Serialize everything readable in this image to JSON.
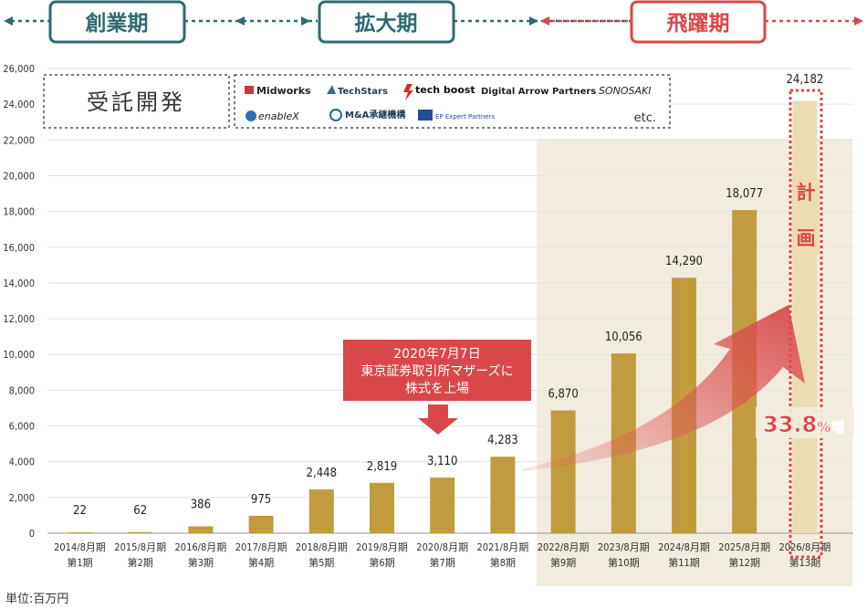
{
  "phases": [
    {
      "label": "創業期",
      "color": "#2f6b72"
    },
    {
      "label": "拡大期",
      "color": "#2f6b72"
    },
    {
      "label": "飛躍期",
      "color": "#d9474a"
    }
  ],
  "clients": {
    "title": "受託開発",
    "logos": [
      "Midworks",
      "TechStars",
      "tech boost",
      "Digital Arrow Partners",
      "SONOSAKI",
      "enableX",
      "M&A承継機構",
      "EP Expert Partners"
    ],
    "etc": "etc."
  },
  "ipo_note": {
    "lines": [
      "2020年7月7日",
      "東京証券取引所マザーズに",
      "株式を上場"
    ]
  },
  "plan_label": [
    "計",
    "画"
  ],
  "growth": {
    "value": "33.8",
    "unit": "%増"
  },
  "unit_note": "単位:百万円",
  "colors": {
    "bar": "#c29b3f",
    "highlight_bg": "#f1ecdd",
    "plan_bar": "#ecdcb4",
    "accent": "#d9474a",
    "teal": "#2f6b72"
  },
  "chart_data": {
    "type": "bar",
    "title": "",
    "xlabel": "",
    "ylabel": "",
    "unit": "百万円",
    "ylim": [
      0,
      26000
    ],
    "yticks": [
      0,
      2000,
      4000,
      6000,
      8000,
      10000,
      12000,
      14000,
      16000,
      18000,
      20000,
      22000,
      24000,
      26000
    ],
    "ytick_labels": [
      "0",
      "2,000",
      "4,000",
      "6,000",
      "8,000",
      "10,000",
      "12,000",
      "14,000",
      "16,000",
      "18,000",
      "20,000",
      "22,000",
      "24,000",
      "26,000"
    ],
    "categories": [
      "2014/8月期",
      "2015/8月期",
      "2016/8月期",
      "2017/8月期",
      "2018/8月期",
      "2019/8月期",
      "2020/8月期",
      "2021/8月期",
      "2022/8月期",
      "2023/8月期",
      "2024/8月期",
      "2025/8月期",
      "2026/8月期"
    ],
    "periods": [
      "第1期",
      "第2期",
      "第3期",
      "第4期",
      "第5期",
      "第6期",
      "第7期",
      "第8期",
      "第9期",
      "第10期",
      "第11期",
      "第12期",
      "第13期"
    ],
    "values": [
      22,
      62,
      386,
      975,
      2448,
      2819,
      3110,
      4283,
      6870,
      10056,
      14290,
      18077,
      24182
    ],
    "value_labels": [
      "22",
      "62",
      "386",
      "975",
      "2,448",
      "2,819",
      "3,110",
      "4,283",
      "6,870",
      "10,056",
      "14,290",
      "18,077",
      "24,182"
    ],
    "planned": [
      false,
      false,
      false,
      false,
      false,
      false,
      false,
      false,
      false,
      false,
      false,
      false,
      true
    ]
  }
}
